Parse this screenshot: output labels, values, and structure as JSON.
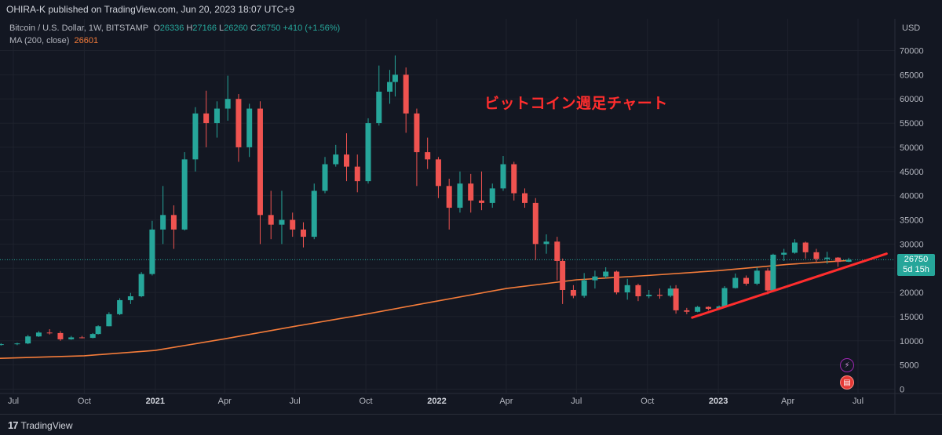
{
  "header": {
    "publisher": "OHIRA-K published on TradingView.com, Jun 20, 2023 18:07 UTC+9"
  },
  "legend": {
    "symbol": "Bitcoin / U.S. Dollar, 1W, BITSTAMP",
    "o_label": "O",
    "o_value": "26336",
    "h_label": "H",
    "h_value": "27166",
    "l_label": "L",
    "l_value": "26260",
    "c_label": "C",
    "c_value": "26750",
    "change": "+410 (+1.56%)",
    "ma_label": "MA (200, close)",
    "ma_value": "26601"
  },
  "annotation": "ビットコイン週足チャート",
  "axis": {
    "currency": "USD",
    "current_price": "26750",
    "countdown": "5d 15h"
  },
  "footer": {
    "brand": "TradingView"
  },
  "colors": {
    "up": "#26a69a",
    "down": "#ef5350",
    "ma": "#f57c3a",
    "trend": "#ff2d2d",
    "background": "#131722"
  },
  "chart_data": {
    "type": "candlestick",
    "symbol": "Bitcoin / U.S. Dollar",
    "interval": "1W",
    "ylim": [
      0,
      72000
    ],
    "y_ticks": [
      0,
      5000,
      10000,
      15000,
      20000,
      25000,
      30000,
      35000,
      40000,
      45000,
      50000,
      55000,
      60000,
      65000,
      70000
    ],
    "x_ticks": [
      {
        "label": "Jul",
        "date": "2020-07-01"
      },
      {
        "label": "Oct",
        "date": "2020-10-01"
      },
      {
        "label": "2021",
        "date": "2021-01-01"
      },
      {
        "label": "Apr",
        "date": "2021-04-01"
      },
      {
        "label": "Jul",
        "date": "2021-07-01"
      },
      {
        "label": "Oct",
        "date": "2021-10-01"
      },
      {
        "label": "2022",
        "date": "2022-01-01"
      },
      {
        "label": "Apr",
        "date": "2022-04-01"
      },
      {
        "label": "Jul",
        "date": "2022-07-01"
      },
      {
        "label": "Oct",
        "date": "2022-10-01"
      },
      {
        "label": "2023",
        "date": "2023-01-01"
      },
      {
        "label": "Apr",
        "date": "2023-04-01"
      },
      {
        "label": "Jul",
        "date": "2023-07-01"
      }
    ],
    "last_price": 26750,
    "ma_period": 200,
    "ma_points": [
      {
        "date": "2020-06-01",
        "value": 6300
      },
      {
        "date": "2020-10-01",
        "value": 6900
      },
      {
        "date": "2021-01-01",
        "value": 8000
      },
      {
        "date": "2021-04-01",
        "value": 10400
      },
      {
        "date": "2021-07-01",
        "value": 13000
      },
      {
        "date": "2021-10-01",
        "value": 15500
      },
      {
        "date": "2022-01-01",
        "value": 18200
      },
      {
        "date": "2022-04-01",
        "value": 20800
      },
      {
        "date": "2022-07-01",
        "value": 22600
      },
      {
        "date": "2022-10-01",
        "value": 23500
      },
      {
        "date": "2023-01-01",
        "value": 24500
      },
      {
        "date": "2023-04-01",
        "value": 25800
      },
      {
        "date": "2023-06-19",
        "value": 26601
      }
    ],
    "trendline": {
      "start": {
        "date": "2022-11-28",
        "value": 14800
      },
      "end": {
        "date": "2023-08-07",
        "value": 28000
      }
    },
    "candles": [
      {
        "date": "2020-06-01",
        "open": 9100,
        "high": 9300,
        "low": 8900,
        "close": 9200
      },
      {
        "date": "2020-06-15",
        "open": 9200,
        "high": 9500,
        "low": 9000,
        "close": 9300
      },
      {
        "date": "2020-07-06",
        "open": 9300,
        "high": 9600,
        "low": 9100,
        "close": 9450
      },
      {
        "date": "2020-07-20",
        "open": 9450,
        "high": 11200,
        "low": 9300,
        "close": 10900
      },
      {
        "date": "2020-08-03",
        "open": 10900,
        "high": 12000,
        "low": 10800,
        "close": 11700
      },
      {
        "date": "2020-08-17",
        "open": 11700,
        "high": 12400,
        "low": 11300,
        "close": 11600
      },
      {
        "date": "2020-08-31",
        "open": 11600,
        "high": 12000,
        "low": 10000,
        "close": 10300
      },
      {
        "date": "2020-09-14",
        "open": 10300,
        "high": 11000,
        "low": 10200,
        "close": 10700
      },
      {
        "date": "2020-09-28",
        "open": 10700,
        "high": 11000,
        "low": 10500,
        "close": 10600
      },
      {
        "date": "2020-10-12",
        "open": 10600,
        "high": 11600,
        "low": 10500,
        "close": 11400
      },
      {
        "date": "2020-10-19",
        "open": 11400,
        "high": 13200,
        "low": 11300,
        "close": 13000
      },
      {
        "date": "2020-11-02",
        "open": 13000,
        "high": 15900,
        "low": 13000,
        "close": 15500
      },
      {
        "date": "2020-11-16",
        "open": 15500,
        "high": 18800,
        "low": 15300,
        "close": 18400
      },
      {
        "date": "2020-11-30",
        "open": 18400,
        "high": 19900,
        "low": 17600,
        "close": 19200
      },
      {
        "date": "2020-12-14",
        "open": 19200,
        "high": 24200,
        "low": 19000,
        "close": 23800
      },
      {
        "date": "2020-12-28",
        "open": 23800,
        "high": 34800,
        "low": 23500,
        "close": 33000
      },
      {
        "date": "2021-01-11",
        "open": 33000,
        "high": 42000,
        "low": 30000,
        "close": 36000
      },
      {
        "date": "2021-01-25",
        "open": 36000,
        "high": 38000,
        "low": 29000,
        "close": 33000
      },
      {
        "date": "2021-02-08",
        "open": 33000,
        "high": 49000,
        "low": 32800,
        "close": 47500
      },
      {
        "date": "2021-02-22",
        "open": 47500,
        "high": 58300,
        "low": 45000,
        "close": 57000
      },
      {
        "date": "2021-03-08",
        "open": 57000,
        "high": 61700,
        "low": 50000,
        "close": 55000
      },
      {
        "date": "2021-03-22",
        "open": 55000,
        "high": 59500,
        "low": 52000,
        "close": 58000
      },
      {
        "date": "2021-04-05",
        "open": 58000,
        "high": 64800,
        "low": 55500,
        "close": 60000
      },
      {
        "date": "2021-04-19",
        "open": 60000,
        "high": 61000,
        "low": 47000,
        "close": 50000
      },
      {
        "date": "2021-05-03",
        "open": 50000,
        "high": 59000,
        "low": 48000,
        "close": 58000
      },
      {
        "date": "2021-05-17",
        "open": 58000,
        "high": 59500,
        "low": 30000,
        "close": 36000
      },
      {
        "date": "2021-05-31",
        "open": 36000,
        "high": 41000,
        "low": 31000,
        "close": 34000
      },
      {
        "date": "2021-06-14",
        "open": 34000,
        "high": 41000,
        "low": 30000,
        "close": 35000
      },
      {
        "date": "2021-06-28",
        "open": 35000,
        "high": 36500,
        "low": 31500,
        "close": 33000
      },
      {
        "date": "2021-07-12",
        "open": 33000,
        "high": 34500,
        "low": 29300,
        "close": 31500
      },
      {
        "date": "2021-07-26",
        "open": 31500,
        "high": 42500,
        "low": 31000,
        "close": 41000
      },
      {
        "date": "2021-08-09",
        "open": 41000,
        "high": 48000,
        "low": 40500,
        "close": 46500
      },
      {
        "date": "2021-08-23",
        "open": 46500,
        "high": 50500,
        "low": 46000,
        "close": 48500
      },
      {
        "date": "2021-09-06",
        "open": 48500,
        "high": 52900,
        "low": 43000,
        "close": 46000
      },
      {
        "date": "2021-09-20",
        "open": 46000,
        "high": 48500,
        "low": 40700,
        "close": 43000
      },
      {
        "date": "2021-10-04",
        "open": 43000,
        "high": 56000,
        "low": 42500,
        "close": 55000
      },
      {
        "date": "2021-10-18",
        "open": 55000,
        "high": 66900,
        "low": 54500,
        "close": 61500
      },
      {
        "date": "2021-11-01",
        "open": 61500,
        "high": 66000,
        "low": 59000,
        "close": 63500
      },
      {
        "date": "2021-11-08",
        "open": 63500,
        "high": 69000,
        "low": 60500,
        "close": 65000
      },
      {
        "date": "2021-11-22",
        "open": 65000,
        "high": 66500,
        "low": 53000,
        "close": 57000
      },
      {
        "date": "2021-12-06",
        "open": 57000,
        "high": 58000,
        "low": 42000,
        "close": 49000
      },
      {
        "date": "2021-12-20",
        "open": 49000,
        "high": 52000,
        "low": 45500,
        "close": 47500
      },
      {
        "date": "2022-01-03",
        "open": 47500,
        "high": 48000,
        "low": 39500,
        "close": 42000
      },
      {
        "date": "2022-01-17",
        "open": 42000,
        "high": 43500,
        "low": 33000,
        "close": 37500
      },
      {
        "date": "2022-01-31",
        "open": 37500,
        "high": 45000,
        "low": 36500,
        "close": 42500
      },
      {
        "date": "2022-02-14",
        "open": 42500,
        "high": 44500,
        "low": 36500,
        "close": 39000
      },
      {
        "date": "2022-02-28",
        "open": 39000,
        "high": 45000,
        "low": 37000,
        "close": 38500
      },
      {
        "date": "2022-03-14",
        "open": 38500,
        "high": 42500,
        "low": 37500,
        "close": 41500
      },
      {
        "date": "2022-03-28",
        "open": 41500,
        "high": 48200,
        "low": 41000,
        "close": 46500
      },
      {
        "date": "2022-04-11",
        "open": 46500,
        "high": 47000,
        "low": 39000,
        "close": 40500
      },
      {
        "date": "2022-04-25",
        "open": 40500,
        "high": 41500,
        "low": 37500,
        "close": 38500
      },
      {
        "date": "2022-05-09",
        "open": 38500,
        "high": 39500,
        "low": 26700,
        "close": 30000
      },
      {
        "date": "2022-05-23",
        "open": 30000,
        "high": 32000,
        "low": 28000,
        "close": 30500
      },
      {
        "date": "2022-06-06",
        "open": 30500,
        "high": 31500,
        "low": 22500,
        "close": 26500
      },
      {
        "date": "2022-06-13",
        "open": 26500,
        "high": 27000,
        "low": 17600,
        "close": 20500
      },
      {
        "date": "2022-06-27",
        "open": 20500,
        "high": 21500,
        "low": 18800,
        "close": 19300
      },
      {
        "date": "2022-07-11",
        "open": 19300,
        "high": 24000,
        "low": 18900,
        "close": 22500
      },
      {
        "date": "2022-07-25",
        "open": 22500,
        "high": 24500,
        "low": 20800,
        "close": 23300
      },
      {
        "date": "2022-08-08",
        "open": 23300,
        "high": 25200,
        "low": 22900,
        "close": 24300
      },
      {
        "date": "2022-08-22",
        "open": 24300,
        "high": 24500,
        "low": 19600,
        "close": 20000
      },
      {
        "date": "2022-09-05",
        "open": 20000,
        "high": 22800,
        "low": 18500,
        "close": 21500
      },
      {
        "date": "2022-09-19",
        "open": 21500,
        "high": 21800,
        "low": 18200,
        "close": 19200
      },
      {
        "date": "2022-10-03",
        "open": 19200,
        "high": 20500,
        "low": 18800,
        "close": 19500
      },
      {
        "date": "2022-10-17",
        "open": 19500,
        "high": 20800,
        "low": 18700,
        "close": 19300
      },
      {
        "date": "2022-10-31",
        "open": 19300,
        "high": 21400,
        "low": 19000,
        "close": 20800
      },
      {
        "date": "2022-11-07",
        "open": 20800,
        "high": 21500,
        "low": 15600,
        "close": 16300
      },
      {
        "date": "2022-11-21",
        "open": 16300,
        "high": 16800,
        "low": 15500,
        "close": 16000
      },
      {
        "date": "2022-12-05",
        "open": 16000,
        "high": 17200,
        "low": 15900,
        "close": 17000
      },
      {
        "date": "2022-12-19",
        "open": 17000,
        "high": 17100,
        "low": 16300,
        "close": 16600
      },
      {
        "date": "2023-01-02",
        "open": 16600,
        "high": 17300,
        "low": 16400,
        "close": 17100
      },
      {
        "date": "2023-01-09",
        "open": 17100,
        "high": 21300,
        "low": 17000,
        "close": 20900
      },
      {
        "date": "2023-01-23",
        "open": 20900,
        "high": 23900,
        "low": 20800,
        "close": 23000
      },
      {
        "date": "2023-02-06",
        "open": 23000,
        "high": 23500,
        "low": 21400,
        "close": 21800
      },
      {
        "date": "2023-02-20",
        "open": 21800,
        "high": 25200,
        "low": 21500,
        "close": 24500
      },
      {
        "date": "2023-03-06",
        "open": 24500,
        "high": 25000,
        "low": 19600,
        "close": 20400
      },
      {
        "date": "2023-03-13",
        "open": 20400,
        "high": 28000,
        "low": 20200,
        "close": 27800
      },
      {
        "date": "2023-03-27",
        "open": 27800,
        "high": 29000,
        "low": 26500,
        "close": 28200
      },
      {
        "date": "2023-04-10",
        "open": 28200,
        "high": 31000,
        "low": 28000,
        "close": 30300
      },
      {
        "date": "2023-04-24",
        "open": 30300,
        "high": 30500,
        "low": 27000,
        "close": 28300
      },
      {
        "date": "2023-05-08",
        "open": 28300,
        "high": 29000,
        "low": 26300,
        "close": 26900
      },
      {
        "date": "2023-05-22",
        "open": 26900,
        "high": 28400,
        "low": 25900,
        "close": 27200
      },
      {
        "date": "2023-06-05",
        "open": 27200,
        "high": 27300,
        "low": 25300,
        "close": 26300
      },
      {
        "date": "2023-06-19",
        "open": 26336,
        "high": 27166,
        "low": 26260,
        "close": 26750
      }
    ]
  }
}
